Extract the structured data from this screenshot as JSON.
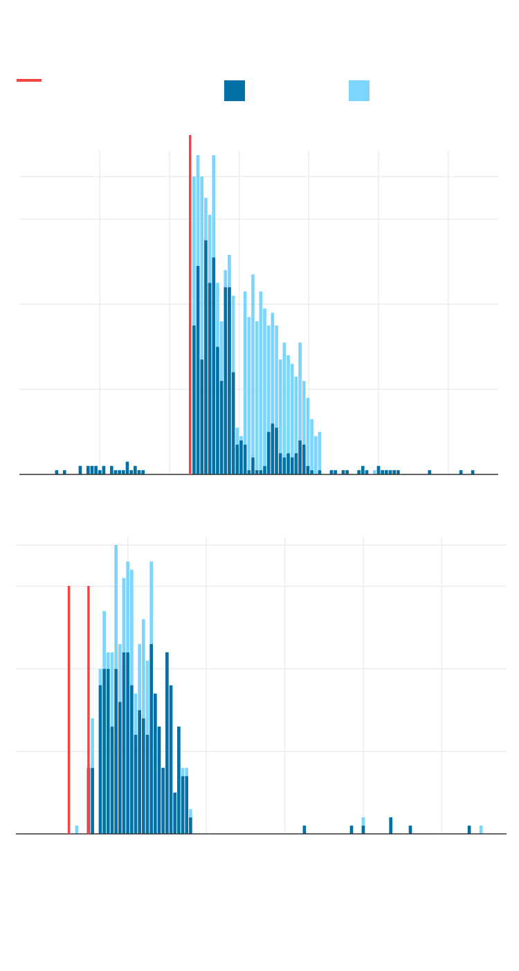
{
  "colors": {
    "threshold": "#F34444",
    "series_dark": "#0070A5",
    "series_light": "#7BD5FF",
    "grid": "#ECECEC",
    "axis": "#333333"
  },
  "legend": {
    "threshold_label": "",
    "dark_label": "",
    "light_label": ""
  },
  "chart_data": [
    {
      "type": "bar",
      "stacked": true,
      "x_range": [
        0,
        122
      ],
      "ylim": [
        0,
        38
      ],
      "grid": true,
      "x_gridlines": [
        20.5,
        38.25,
        56,
        73.75,
        91.5,
        109.25
      ],
      "y_gridlines": [
        10,
        20,
        30,
        35
      ],
      "thresholds": [
        43.5
      ],
      "series": [
        {
          "color": "series_dark",
          "bins": [
            [
              9.5,
              0.5
            ],
            [
              11.5,
              0.5
            ],
            [
              15.5,
              1
            ],
            [
              17.5,
              1
            ],
            [
              18.5,
              1
            ],
            [
              19.5,
              1
            ],
            [
              20.5,
              0.5
            ],
            [
              21.5,
              1
            ],
            [
              23.5,
              1
            ],
            [
              24.5,
              0.5
            ],
            [
              25.5,
              0.5
            ],
            [
              26.5,
              0.5
            ],
            [
              27.5,
              1.5
            ],
            [
              28.5,
              0.5
            ],
            [
              29.5,
              1
            ],
            [
              30.5,
              0.5
            ],
            [
              31.5,
              0.5
            ],
            [
              44.5,
              17.5
            ],
            [
              45.5,
              24.5
            ],
            [
              46.5,
              13.5
            ],
            [
              47.5,
              27.5
            ],
            [
              48.5,
              22.5
            ],
            [
              49.5,
              25.5
            ],
            [
              50.5,
              15
            ],
            [
              51.5,
              11
            ],
            [
              52.5,
              22
            ],
            [
              53.5,
              22
            ],
            [
              54.5,
              12
            ],
            [
              55.5,
              3.5
            ],
            [
              56.5,
              4
            ],
            [
              57.5,
              3.5
            ],
            [
              58.5,
              0.5
            ],
            [
              59.5,
              2
            ],
            [
              60.5,
              0.5
            ],
            [
              61.5,
              0.5
            ],
            [
              62.5,
              1
            ],
            [
              63.5,
              5
            ],
            [
              64.5,
              6
            ],
            [
              65.5,
              5.5
            ],
            [
              66.5,
              2.5
            ],
            [
              67.5,
              2
            ],
            [
              68.5,
              2.5
            ],
            [
              69.5,
              2
            ],
            [
              70.5,
              2.5
            ],
            [
              71.5,
              4
            ],
            [
              72.5,
              3.5
            ],
            [
              73.5,
              1
            ],
            [
              74.5,
              0.5
            ],
            [
              76.5,
              0.5
            ],
            [
              79.5,
              0.5
            ],
            [
              80.5,
              0.5
            ],
            [
              82.5,
              0.5
            ],
            [
              83.5,
              0.5
            ],
            [
              86.5,
              0.5
            ],
            [
              87.5,
              1
            ],
            [
              88.5,
              0.5
            ],
            [
              91.5,
              1
            ],
            [
              92.5,
              0.5
            ],
            [
              93.5,
              0.5
            ],
            [
              94.5,
              0.5
            ],
            [
              95.5,
              0.5
            ],
            [
              96.5,
              0.5
            ],
            [
              104.5,
              0.5
            ],
            [
              112.5,
              0.5
            ],
            [
              115.5,
              0.5
            ]
          ]
        },
        {
          "color": "series_light",
          "bins": [
            [
              44.5,
              17.5
            ],
            [
              45.5,
              13
            ],
            [
              46.5,
              21.5
            ],
            [
              47.5,
              5
            ],
            [
              48.5,
              8
            ],
            [
              49.5,
              12
            ],
            [
              50.5,
              7.5
            ],
            [
              51.5,
              7
            ],
            [
              52.5,
              2
            ],
            [
              53.5,
              3.8
            ],
            [
              54.5,
              9
            ],
            [
              55.5,
              2
            ],
            [
              56.5,
              0.5
            ],
            [
              57.5,
              18
            ],
            [
              58.5,
              18
            ],
            [
              59.5,
              21.5
            ],
            [
              60.5,
              17.5
            ],
            [
              61.5,
              21
            ],
            [
              62.5,
              18.5
            ],
            [
              63.5,
              12.5
            ],
            [
              64.5,
              13
            ],
            [
              65.5,
              12
            ],
            [
              66.5,
              11
            ],
            [
              67.5,
              13.5
            ],
            [
              68.5,
              11.5
            ],
            [
              69.5,
              11
            ],
            [
              70.5,
              9
            ],
            [
              71.5,
              11.5
            ],
            [
              72.5,
              7.5
            ],
            [
              73.5,
              8
            ],
            [
              74.5,
              6
            ],
            [
              75.5,
              4.5
            ],
            [
              76.5,
              4.5
            ],
            [
              90.5,
              0.5
            ]
          ]
        }
      ]
    },
    {
      "type": "bar",
      "stacked": true,
      "x_range": [
        0,
        125
      ],
      "ylim": [
        0,
        36
      ],
      "grid": true,
      "x_gridlines": [
        28.5,
        48.5,
        68.5,
        88.5,
        108.5
      ],
      "y_gridlines": [
        10,
        20,
        30,
        35
      ],
      "thresholds": [
        13.5,
        18.5
      ],
      "series": [
        {
          "color": "series_dark",
          "bins": [
            [
              18.5,
              8
            ],
            [
              19.5,
              8
            ],
            [
              21.5,
              18
            ],
            [
              22.5,
              20
            ],
            [
              23.5,
              20
            ],
            [
              24.5,
              13
            ],
            [
              25.5,
              20
            ],
            [
              26.5,
              16
            ],
            [
              27.5,
              22
            ],
            [
              28.5,
              22
            ],
            [
              29.5,
              18
            ],
            [
              30.5,
              12
            ],
            [
              31.5,
              15
            ],
            [
              32.5,
              14
            ],
            [
              33.5,
              12
            ],
            [
              34.5,
              23
            ],
            [
              35.5,
              17
            ],
            [
              36.5,
              13
            ],
            [
              37.5,
              8
            ],
            [
              38.5,
              22
            ],
            [
              39.5,
              18
            ],
            [
              40.5,
              5
            ],
            [
              41.5,
              13
            ],
            [
              42.5,
              7
            ],
            [
              43.5,
              7
            ],
            [
              44.5,
              2
            ],
            [
              73.5,
              1
            ],
            [
              85.5,
              1
            ],
            [
              88.5,
              1
            ],
            [
              95.5,
              2
            ],
            [
              100.5,
              1
            ],
            [
              115.5,
              1
            ]
          ]
        },
        {
          "color": "series_light",
          "bins": [
            [
              15.5,
              1
            ],
            [
              19.5,
              6
            ],
            [
              21.5,
              2
            ],
            [
              22.5,
              7
            ],
            [
              23.5,
              2
            ],
            [
              24.5,
              9
            ],
            [
              25.5,
              15
            ],
            [
              26.5,
              7
            ],
            [
              27.5,
              9
            ],
            [
              28.5,
              11
            ],
            [
              29.5,
              14
            ],
            [
              30.5,
              5
            ],
            [
              31.5,
              8
            ],
            [
              32.5,
              12
            ],
            [
              33.5,
              9
            ],
            [
              34.5,
              10
            ],
            [
              42.5,
              1
            ],
            [
              43.5,
              1
            ],
            [
              44.5,
              1
            ],
            [
              88.5,
              1
            ],
            [
              118.5,
              1
            ]
          ]
        }
      ]
    }
  ]
}
